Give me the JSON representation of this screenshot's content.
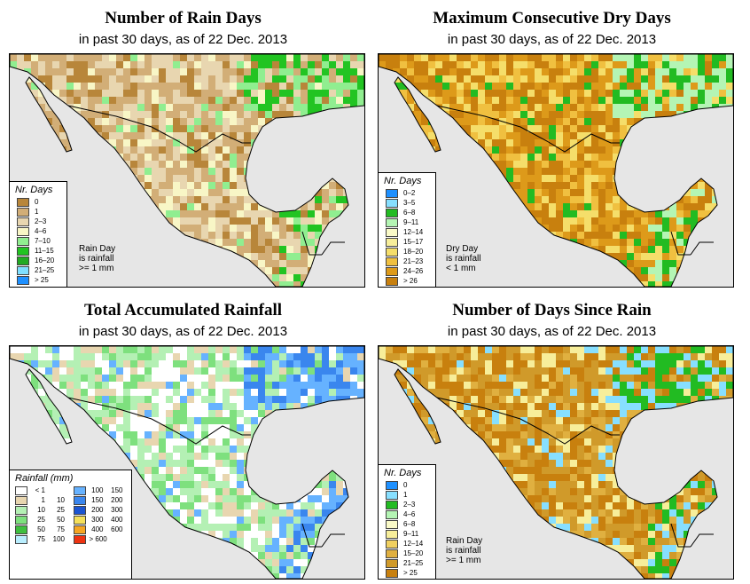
{
  "panels": [
    {
      "id": "rain-days",
      "title": "Number of Rain Days",
      "subtitle": "in past 30 days, as of  22 Dec. 2013",
      "legend_title": "Nr. Days",
      "legend_items": [
        "0",
        "1",
        "2–3",
        "4–6",
        "7–10",
        "11–15",
        "16–20",
        "21–25",
        "> 25"
      ],
      "legend_colors": [
        "#b8863a",
        "#d2ae77",
        "#e8d6b0",
        "#f8f6c6",
        "#90ee90",
        "#22c422",
        "#22aa22",
        "#7fdfff",
        "#1e90ff"
      ],
      "note_lines": [
        "Rain Day",
        "is rainfall",
        ">= 1 mm"
      ]
    },
    {
      "id": "dry-days",
      "title": "Maximum Consecutive Dry Days",
      "subtitle": "in past 30 days, as of  22 Dec. 2013",
      "legend_title": "Nr. Days",
      "legend_items": [
        "0–2",
        "3–5",
        "6–8",
        "9–11",
        "12–14",
        "15–17",
        "18–20",
        "21–23",
        "24–26",
        "> 26"
      ],
      "legend_colors": [
        "#1e90ff",
        "#87dfff",
        "#22bb22",
        "#b4f5b4",
        "#fafac8",
        "#f7ee9a",
        "#f5de6a",
        "#f0c040",
        "#dd9a1a",
        "#c8800e"
      ],
      "note_lines": [
        "Dry Day",
        "is rainfall",
        "< 1 mm"
      ]
    },
    {
      "id": "total-rainfall",
      "title": "Total Accumulated Rainfall",
      "subtitle": "in past 30 days, as of  22 Dec. 2013",
      "legend_title": "Rainfall (mm)",
      "legend_left": [
        {
          "lo": "< 1",
          "hi": ""
        },
        {
          "lo": "1",
          "hi": "10"
        },
        {
          "lo": "10",
          "hi": "25"
        },
        {
          "lo": "25",
          "hi": "50"
        },
        {
          "lo": "50",
          "hi": "75"
        },
        {
          "lo": "75",
          "hi": "100"
        }
      ],
      "legend_left_colors": [
        "#ffffff",
        "#e8d6b0",
        "#b4f0b4",
        "#7ee07e",
        "#3fbf3f",
        "#b9eefe"
      ],
      "legend_right": [
        {
          "lo": "100",
          "hi": "150"
        },
        {
          "lo": "150",
          "hi": "200"
        },
        {
          "lo": "200",
          "hi": "300"
        },
        {
          "lo": "300",
          "hi": "400"
        },
        {
          "lo": "400",
          "hi": "600"
        },
        {
          "lo": "> 600",
          "hi": ""
        }
      ],
      "legend_right_colors": [
        "#66b2ff",
        "#3a86ee",
        "#1c55d2",
        "#f5e05a",
        "#f5a623",
        "#ee3311"
      ]
    },
    {
      "id": "days-since-rain",
      "title": "Number of Days Since Rain",
      "subtitle": "in past 30 days, as of  22 Dec. 2013",
      "legend_title": "Nr. Days",
      "legend_items": [
        "0",
        "1",
        "2–3",
        "4–6",
        "6–8",
        "9–11",
        "12–14",
        "15–20",
        "21–25",
        "> 25"
      ],
      "legend_colors": [
        "#1e90ff",
        "#87dfff",
        "#22bb22",
        "#b4f5b4",
        "#fafac8",
        "#f7ee9a",
        "#f0d060",
        "#e0b040",
        "#d09a2a",
        "#c8800e"
      ],
      "note_lines": [
        "Rain Day",
        "is rainfall",
        ">= 1 mm"
      ]
    }
  ],
  "map_colors": {
    "ocean": "#e6e6e6",
    "border": "#000000"
  }
}
